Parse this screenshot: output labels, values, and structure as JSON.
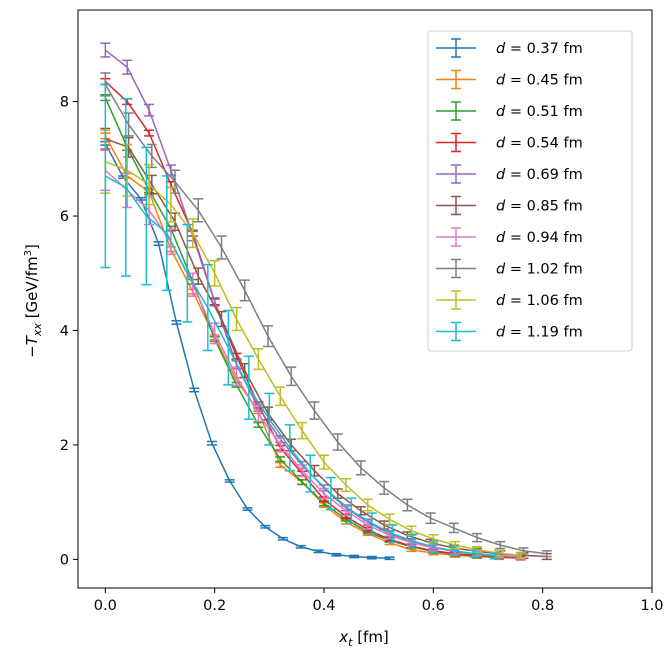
{
  "chart_data": {
    "type": "line",
    "title": "",
    "xlabel": "x_t [fm]",
    "ylabel": "−T_xx [GeV/fm³]",
    "xlim": [
      -0.05,
      1.0
    ],
    "ylim": [
      -0.5,
      9.6
    ],
    "xticks": [
      0.0,
      0.2,
      0.4,
      0.6,
      0.8,
      1.0
    ],
    "xtick_labels": [
      "0.0",
      "0.2",
      "0.4",
      "0.6",
      "0.8",
      "1.0"
    ],
    "yticks": [
      0,
      2,
      4,
      6,
      8
    ],
    "ytick_labels": [
      "0",
      "2",
      "4",
      "6",
      "8"
    ],
    "grid": false,
    "legend_position": "top-right",
    "series": [
      {
        "name": "d = 0.37 fm",
        "d": "0.37",
        "color": "#1f77b4",
        "x0": 0.0,
        "dx": 0.0325,
        "values": [
          7.27,
          6.68,
          6.3,
          5.52,
          4.14,
          2.96,
          2.03,
          1.37,
          0.88,
          0.57,
          0.36,
          0.22,
          0.14,
          0.08,
          0.05,
          0.03,
          0.02
        ],
        "errors": [
          0.03,
          0.02,
          0.02,
          0.03,
          0.03,
          0.03,
          0.03,
          0.02,
          0.02,
          0.02,
          0.02,
          0.02,
          0.02,
          0.02,
          0.02,
          0.02,
          0.02
        ]
      },
      {
        "name": "d = 0.45 fm",
        "d": "0.45",
        "color": "#ff7f0e",
        "x0": 0.0,
        "dx": 0.04,
        "values": [
          7.4,
          6.7,
          6.42,
          5.42,
          4.68,
          3.88,
          3.13,
          2.59,
          1.65,
          1.35,
          0.95,
          0.65,
          0.45,
          0.29,
          0.17,
          0.11,
          0.07,
          0.05,
          0.03,
          0.02
        ],
        "errors": [
          0.05,
          0.04,
          0.04,
          0.04,
          0.04,
          0.04,
          0.04,
          0.04,
          0.04,
          0.04,
          0.04,
          0.03,
          0.03,
          0.03,
          0.03,
          0.03,
          0.03,
          0.03,
          0.03,
          0.03
        ]
      },
      {
        "name": "d = 0.51 fm",
        "d": "0.51",
        "color": "#2ca02c",
        "x0": 0.0,
        "dx": 0.04,
        "values": [
          8.07,
          7.2,
          6.45,
          5.78,
          4.85,
          3.85,
          3.05,
          2.35,
          1.75,
          1.35,
          0.98,
          0.7,
          0.48,
          0.33,
          0.22,
          0.14,
          0.09,
          0.06,
          0.04,
          0.03
        ],
        "errors": [
          0.05,
          0.05,
          0.04,
          0.04,
          0.04,
          0.04,
          0.04,
          0.04,
          0.04,
          0.04,
          0.04,
          0.03,
          0.03,
          0.03,
          0.03,
          0.03,
          0.03,
          0.03,
          0.03,
          0.03
        ]
      },
      {
        "name": "d = 0.54 fm",
        "d": "0.54",
        "color": "#d62728",
        "x0": 0.0,
        "dx": 0.04,
        "values": [
          8.35,
          8.0,
          7.45,
          6.55,
          5.7,
          4.5,
          3.55,
          2.7,
          1.95,
          1.5,
          1.05,
          0.75,
          0.52,
          0.35,
          0.23,
          0.15,
          0.1,
          0.07,
          0.05,
          0.03
        ],
        "errors": [
          0.05,
          0.05,
          0.05,
          0.05,
          0.05,
          0.05,
          0.05,
          0.05,
          0.04,
          0.04,
          0.04,
          0.04,
          0.04,
          0.03,
          0.03,
          0.03,
          0.03,
          0.03,
          0.03,
          0.03
        ]
      },
      {
        "name": "d = 0.69 fm",
        "d": "0.69",
        "color": "#9467bd",
        "x0": 0.0,
        "dx": 0.04,
        "values": [
          8.9,
          8.6,
          7.85,
          6.8,
          5.65,
          4.5,
          3.4,
          2.65,
          2.1,
          1.65,
          1.25,
          0.9,
          0.65,
          0.45,
          0.31,
          0.21,
          0.14,
          0.09,
          0.06,
          0.04
        ],
        "errors": [
          0.12,
          0.12,
          0.1,
          0.09,
          0.08,
          0.07,
          0.07,
          0.06,
          0.06,
          0.06,
          0.05,
          0.05,
          0.05,
          0.05,
          0.04,
          0.04,
          0.04,
          0.04,
          0.04,
          0.04
        ]
      },
      {
        "name": "d = 0.85 fm",
        "d": "0.85",
        "color": "#8c564b",
        "x0": 0.0,
        "dx": 0.0425,
        "values": [
          7.35,
          7.2,
          6.55,
          5.9,
          4.95,
          4.2,
          3.3,
          2.55,
          2.0,
          1.55,
          1.15,
          0.85,
          0.6,
          0.42,
          0.29,
          0.2,
          0.14,
          0.1,
          0.07,
          0.05
        ],
        "errors": [
          0.18,
          0.17,
          0.16,
          0.15,
          0.14,
          0.13,
          0.12,
          0.11,
          0.1,
          0.09,
          0.08,
          0.07,
          0.07,
          0.06,
          0.06,
          0.05,
          0.05,
          0.05,
          0.05,
          0.05
        ]
      },
      {
        "name": "d = 0.94 fm",
        "d": "0.94",
        "color": "#e377c2",
        "x0": 0.0,
        "dx": 0.04,
        "values": [
          6.8,
          6.45,
          6.1,
          5.55,
          4.8,
          3.95,
          3.2,
          2.55,
          2.0,
          1.55,
          1.15,
          0.85,
          0.6,
          0.42,
          0.29,
          0.2,
          0.14,
          0.1,
          0.07,
          0.05
        ],
        "errors": [
          0.35,
          0.3,
          0.25,
          0.22,
          0.2,
          0.18,
          0.16,
          0.14,
          0.12,
          0.1,
          0.09,
          0.08,
          0.07,
          0.06,
          0.05,
          0.05,
          0.05,
          0.04,
          0.04,
          0.04
        ]
      },
      {
        "name": "d = 1.02 fm",
        "d": "1.02",
        "color": "#7f7f7f",
        "x0": 0.0,
        "dx": 0.0425,
        "values": [
          8.3,
          7.6,
          7.05,
          6.6,
          6.1,
          5.45,
          4.7,
          3.9,
          3.2,
          2.6,
          2.05,
          1.6,
          1.25,
          0.95,
          0.72,
          0.55,
          0.38,
          0.25,
          0.15,
          0.1
        ],
        "errors": [
          0.2,
          0.2,
          0.2,
          0.2,
          0.2,
          0.2,
          0.18,
          0.18,
          0.16,
          0.15,
          0.14,
          0.12,
          0.11,
          0.1,
          0.09,
          0.08,
          0.07,
          0.06,
          0.05,
          0.05
        ]
      },
      {
        "name": "d = 1.06 fm",
        "d": "1.06",
        "color": "#bcbd22",
        "x0": 0.0,
        "dx": 0.04,
        "values": [
          6.95,
          6.8,
          6.55,
          6.2,
          5.7,
          5.0,
          4.2,
          3.5,
          2.85,
          2.25,
          1.7,
          1.3,
          0.95,
          0.7,
          0.5,
          0.36,
          0.25,
          0.17,
          0.11,
          0.07
        ],
        "errors": [
          0.55,
          0.45,
          0.35,
          0.3,
          0.25,
          0.22,
          0.2,
          0.18,
          0.16,
          0.14,
          0.12,
          0.11,
          0.1,
          0.09,
          0.08,
          0.07,
          0.06,
          0.05,
          0.05,
          0.05
        ]
      },
      {
        "name": "d = 1.19 fm",
        "d": "1.19",
        "color": "#17becf",
        "x0": 0.0,
        "dx": 0.0375,
        "values": [
          6.7,
          6.5,
          6.0,
          5.7,
          5.0,
          4.4,
          3.7,
          3.0,
          2.45,
          1.95,
          1.5,
          1.15,
          0.85,
          0.63,
          0.45,
          0.32,
          0.22,
          0.15,
          0.1,
          0.06
        ],
        "errors": [
          1.6,
          1.55,
          1.2,
          1.0,
          0.85,
          0.75,
          0.65,
          0.55,
          0.45,
          0.4,
          0.32,
          0.28,
          0.22,
          0.18,
          0.15,
          0.12,
          0.1,
          0.08,
          0.06,
          0.05
        ]
      }
    ]
  }
}
